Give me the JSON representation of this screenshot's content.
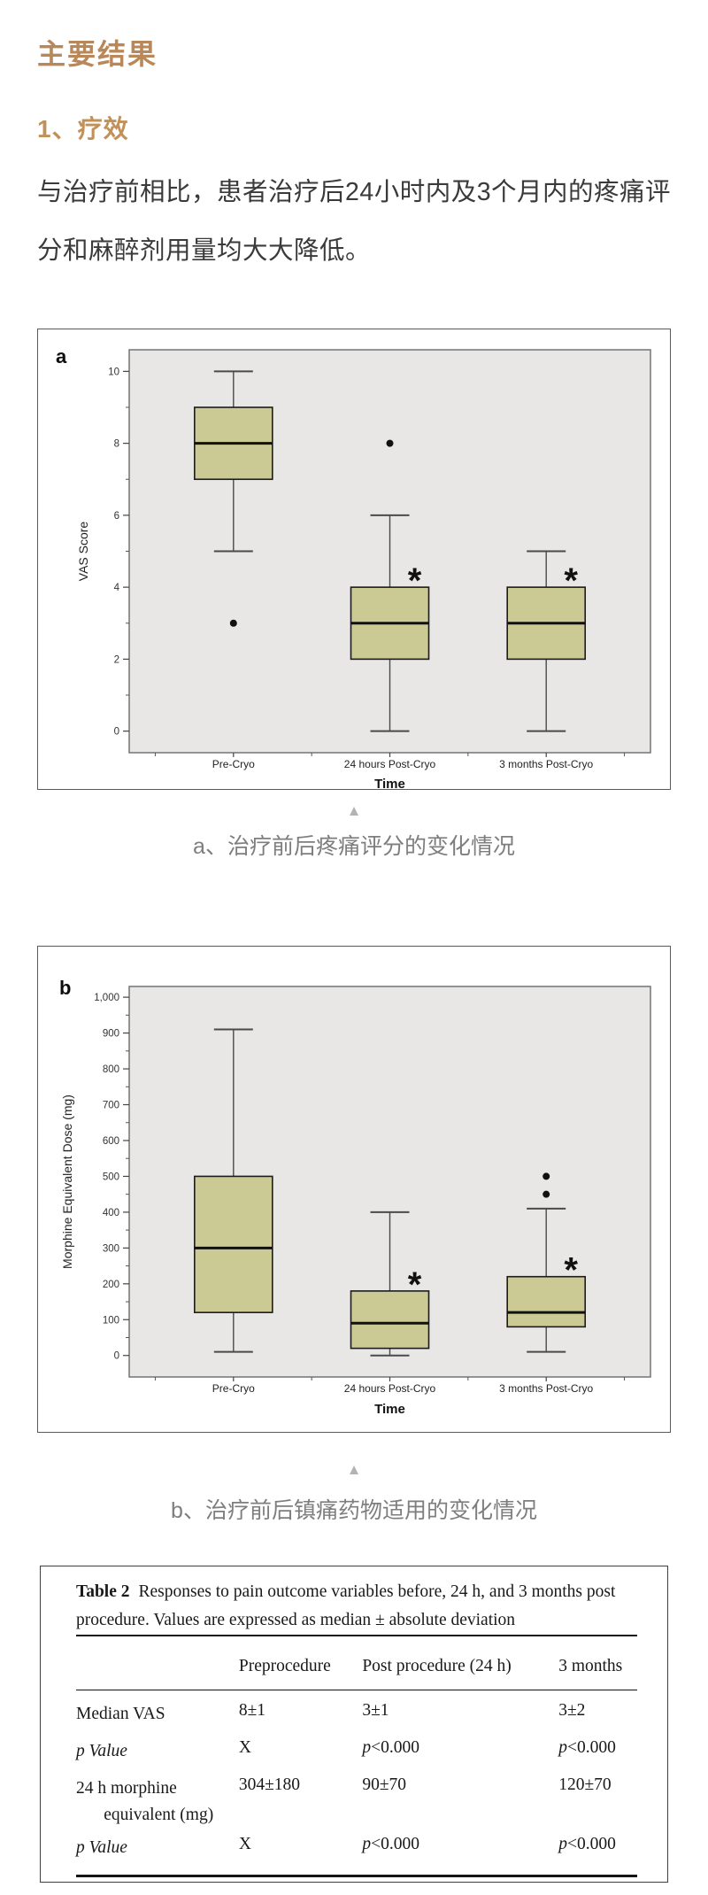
{
  "page": {
    "main_title": "主要结果",
    "section_title": "1、疗效",
    "paragraph": "与治疗前相比，患者治疗后24小时内及3个月内的疼痛评分和麻醉剂用量均大大降低。",
    "figure_a_caption": "a、治疗前后疼痛评分的变化情况",
    "figure_b_caption": "b、治疗前后镇痛药物适用的变化情况",
    "triangle_icon": "▲"
  },
  "colors": {
    "title_gold": "#b8885a",
    "section_gold": "#c29158",
    "body_text": "#3a3a3a",
    "caption_gray": "#7e7e7e",
    "plot_background": "#e8e7e5",
    "box_fill": "#cbc994",
    "box_stroke": "#1c1c1c"
  },
  "chart_data": [
    {
      "type": "boxplot",
      "panel_label": "a",
      "xlabel": "Time",
      "ylabel": "VAS Score",
      "categories": [
        "Pre-Cryo",
        "24 hours Post-Cryo",
        "3 months Post-Cryo"
      ],
      "ylim": [
        -0.6,
        10.6
      ],
      "yticks": [
        0,
        2,
        4,
        6,
        8,
        10
      ],
      "ytick_labels": [
        "0",
        "2",
        "4",
        "6",
        "8",
        "10"
      ],
      "grid": false,
      "sig_marker": "*",
      "series": [
        {
          "category": "Pre-Cryo",
          "whisker_low": 5,
          "q1": 7,
          "median": 8,
          "q3": 9,
          "whisker_high": 10,
          "outliers": [
            3
          ],
          "significant": false
        },
        {
          "category": "24 hours Post-Cryo",
          "whisker_low": 0,
          "q1": 2,
          "median": 3,
          "q3": 4,
          "whisker_high": 6,
          "outliers": [
            8
          ],
          "significant": true
        },
        {
          "category": "3 months Post-Cryo",
          "whisker_low": 0,
          "q1": 2,
          "median": 3,
          "q3": 4,
          "whisker_high": 5,
          "outliers": [],
          "significant": true
        }
      ]
    },
    {
      "type": "boxplot",
      "panel_label": "b",
      "xlabel": "Time",
      "ylabel": "Morphine Equivalent Dose (mg)",
      "categories": [
        "Pre-Cryo",
        "24 hours Post-Cryo",
        "3 months Post-Cryo"
      ],
      "ylim": [
        -60,
        1030
      ],
      "yticks": [
        0,
        100,
        200,
        300,
        400,
        500,
        600,
        700,
        800,
        900,
        1000
      ],
      "ytick_labels": [
        "0",
        "100",
        "200",
        "300",
        "400",
        "500",
        "600",
        "700",
        "800",
        "900",
        "1,000"
      ],
      "grid": false,
      "sig_marker": "*",
      "series": [
        {
          "category": "Pre-Cryo",
          "whisker_low": 10,
          "q1": 120,
          "median": 300,
          "q3": 500,
          "whisker_high": 910,
          "outliers": [],
          "significant": false
        },
        {
          "category": "24 hours Post-Cryo",
          "whisker_low": 0,
          "q1": 20,
          "median": 90,
          "q3": 180,
          "whisker_high": 400,
          "outliers": [],
          "significant": true
        },
        {
          "category": "3 months Post-Cryo",
          "whisker_low": 10,
          "q1": 80,
          "median": 120,
          "q3": 220,
          "whisker_high": 410,
          "outliers": [
            450,
            500
          ],
          "significant": true
        }
      ]
    }
  ],
  "table": {
    "caption_bold": "Table 2",
    "caption_rest": "Responses to pain outcome variables before, 24 h, and 3 months post procedure. Values are expressed as median ± absolute deviation",
    "columns": [
      "",
      "Preprocedure",
      "Post procedure (24 h)",
      "3 months"
    ],
    "rows": [
      {
        "label": "Median VAS",
        "cells": [
          "8±1",
          "3±1",
          "3±2"
        ]
      },
      {
        "label": "p Value",
        "cells": [
          "X",
          "p<0.000",
          "p<0.000"
        ]
      },
      {
        "label": "24 h morphine equivalent (mg)",
        "cells": [
          "304±180",
          "90±70",
          "120±70"
        ]
      },
      {
        "label": "p Value",
        "cells": [
          "X",
          "p<0.000",
          "p<0.000"
        ]
      }
    ]
  }
}
